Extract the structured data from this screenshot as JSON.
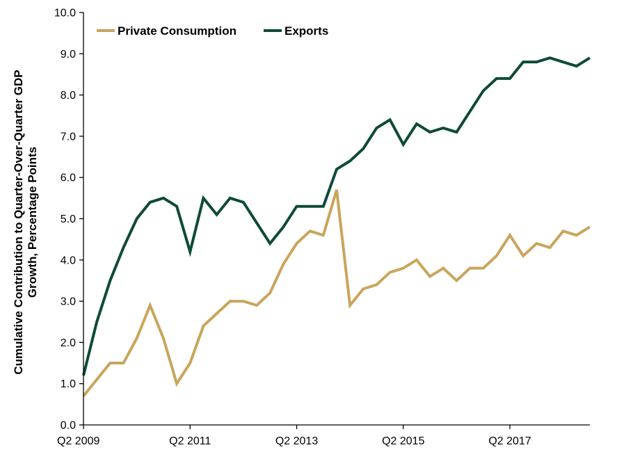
{
  "chart_data": {
    "type": "line",
    "title": "",
    "xlabel": "",
    "ylabel": "Cumulative Contribution to Quarter-Over-Quarter GDP Growth, Percentage Points",
    "ylabel_lines": [
      "Cumulative Contribution to Quarter-Over-Quarter GDP",
      "Growth, Percentage Points"
    ],
    "ylim": [
      0,
      10
    ],
    "yticks": [
      "0.0",
      "1.0",
      "2.0",
      "3.0",
      "4.0",
      "5.0",
      "6.0",
      "7.0",
      "8.0",
      "9.0",
      "10.0"
    ],
    "xticks": [
      {
        "label": "Q2 2009",
        "index": 0
      },
      {
        "label": "Q2 2011",
        "index": 8
      },
      {
        "label": "Q2 2013",
        "index": 16
      },
      {
        "label": "Q2 2015",
        "index": 24
      },
      {
        "label": "Q2 2017",
        "index": 32
      }
    ],
    "x": [
      "Q2 2009",
      "Q3 2009",
      "Q4 2009",
      "Q1 2010",
      "Q2 2010",
      "Q3 2010",
      "Q4 2010",
      "Q1 2011",
      "Q2 2011",
      "Q3 2011",
      "Q4 2011",
      "Q1 2012",
      "Q2 2012",
      "Q3 2012",
      "Q4 2012",
      "Q1 2013",
      "Q2 2013",
      "Q3 2013",
      "Q4 2013",
      "Q1 2014",
      "Q2 2014",
      "Q3 2014",
      "Q4 2014",
      "Q1 2015",
      "Q2 2015",
      "Q3 2015",
      "Q4 2015",
      "Q1 2016",
      "Q2 2016",
      "Q3 2016",
      "Q4 2016",
      "Q1 2017",
      "Q2 2017",
      "Q3 2017",
      "Q4 2017",
      "Q1 2018",
      "Q2 2018",
      "Q3 2018",
      "Q4 2018"
    ],
    "legend_position": "top-left",
    "grid": false,
    "series": [
      {
        "name": "Private Consumption",
        "color": "#C9A55C",
        "values": [
          0.7,
          1.1,
          1.5,
          1.5,
          2.1,
          2.9,
          2.1,
          1.0,
          1.5,
          2.4,
          2.7,
          3.0,
          3.0,
          2.9,
          3.2,
          3.9,
          4.4,
          4.7,
          4.6,
          5.7,
          2.9,
          3.3,
          3.4,
          3.7,
          3.8,
          4.0,
          3.6,
          3.8,
          3.5,
          3.8,
          3.8,
          4.1,
          4.6,
          4.1,
          4.4,
          4.3,
          4.7,
          4.6,
          4.8
        ]
      },
      {
        "name": "Exports",
        "color": "#0E4A37",
        "values": [
          1.2,
          2.5,
          3.5,
          4.3,
          5.0,
          5.4,
          5.5,
          5.3,
          4.2,
          5.5,
          5.1,
          5.5,
          5.4,
          4.9,
          4.4,
          4.8,
          5.3,
          5.3,
          5.3,
          6.2,
          6.4,
          6.7,
          7.2,
          7.4,
          6.8,
          7.3,
          7.1,
          7.2,
          7.1,
          7.6,
          8.1,
          8.4,
          8.4,
          8.8,
          8.8,
          8.9,
          8.8,
          8.7,
          8.9
        ]
      }
    ]
  }
}
